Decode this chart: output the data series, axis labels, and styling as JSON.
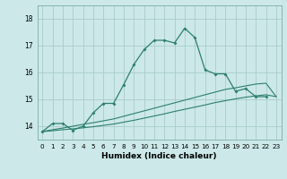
{
  "xlabel": "Humidex (Indice chaleur)",
  "background_color": "#cce8e8",
  "grid_color": "#aacccc",
  "line_color": "#2d7f6e",
  "x_ticks": [
    0,
    1,
    2,
    3,
    4,
    5,
    6,
    7,
    8,
    9,
    10,
    11,
    12,
    13,
    14,
    15,
    16,
    17,
    18,
    19,
    20,
    21,
    22,
    23
  ],
  "y_ticks": [
    14,
    15,
    16,
    17,
    18
  ],
  "ylim": [
    13.5,
    18.5
  ],
  "xlim": [
    -0.5,
    23.5
  ],
  "series": [
    {
      "x": [
        0,
        1,
        2,
        3,
        4,
        5,
        6,
        7,
        8,
        9,
        10,
        11,
        12,
        13,
        14,
        15,
        16,
        17,
        18,
        19,
        20,
        21,
        22
      ],
      "y": [
        13.8,
        14.1,
        14.1,
        13.85,
        14.0,
        14.5,
        14.85,
        14.85,
        15.55,
        16.3,
        16.85,
        17.2,
        17.2,
        17.1,
        17.65,
        17.3,
        16.1,
        15.95,
        15.95,
        15.3,
        15.4,
        15.1,
        15.1
      ],
      "has_markers": true
    },
    {
      "x": [
        0,
        1,
        2,
        3,
        4,
        5,
        6,
        7,
        8,
        9,
        10,
        11,
        12,
        13,
        14,
        15,
        16,
        17,
        18,
        19,
        20,
        21,
        22,
        23
      ],
      "y": [
        13.8,
        13.87,
        13.93,
        14.0,
        14.07,
        14.13,
        14.2,
        14.27,
        14.37,
        14.47,
        14.57,
        14.67,
        14.77,
        14.87,
        14.97,
        15.07,
        15.17,
        15.27,
        15.37,
        15.43,
        15.5,
        15.57,
        15.6,
        15.1
      ],
      "has_markers": false
    },
    {
      "x": [
        0,
        1,
        2,
        3,
        4,
        5,
        6,
        7,
        8,
        9,
        10,
        11,
        12,
        13,
        14,
        15,
        16,
        17,
        18,
        19,
        20,
        21,
        22,
        23
      ],
      "y": [
        13.8,
        13.83,
        13.87,
        13.9,
        13.94,
        13.98,
        14.03,
        14.08,
        14.15,
        14.22,
        14.3,
        14.38,
        14.46,
        14.55,
        14.63,
        14.71,
        14.79,
        14.88,
        14.95,
        15.02,
        15.08,
        15.13,
        15.17,
        15.1
      ],
      "has_markers": false
    }
  ]
}
